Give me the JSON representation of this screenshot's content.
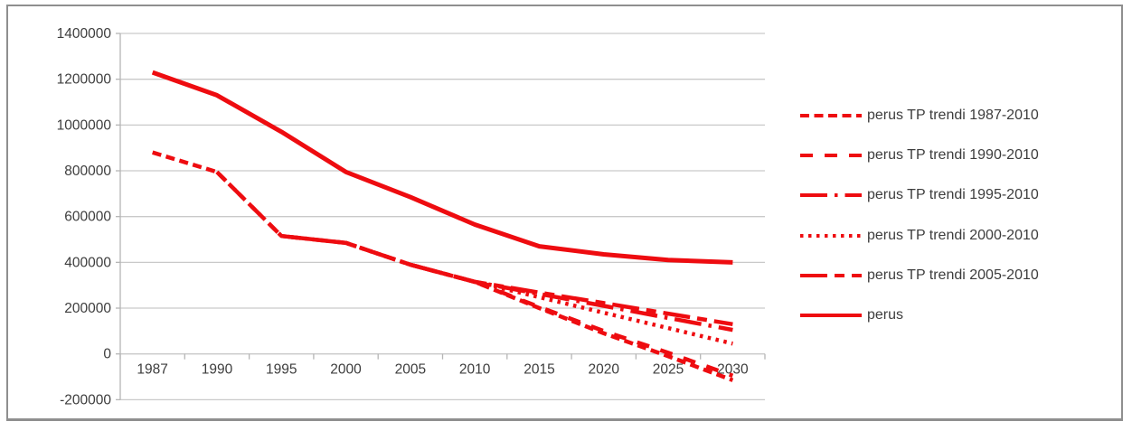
{
  "colors": {
    "line": "#ee0c10",
    "gridline": "#c9c9c9",
    "axis": "#b5b5b5",
    "text": "#3d3d3d",
    "frame": "#8f8f8f"
  },
  "chart_data": {
    "type": "line",
    "title": "",
    "xlabel": "",
    "ylabel": "",
    "grid": "horizontal",
    "legend_position": "right",
    "categories": [
      "1987",
      "1990",
      "1995",
      "2000",
      "2005",
      "2010",
      "2015",
      "2020",
      "2025",
      "2030"
    ],
    "y_axis": {
      "min": -200000,
      "max": 1400000,
      "step": 200000,
      "tick_labels": [
        "1400000",
        "1200000",
        "1000000",
        "800000",
        "600000",
        "400000",
        "200000",
        "0",
        "-200000"
      ]
    },
    "series": [
      {
        "name": "perus TP trendi 1987-2010",
        "dash": "10 5.5",
        "width": 4.5,
        "values": [
          880000,
          795000,
          515000,
          485000,
          390000,
          315000,
          200000,
          90000,
          -10000,
          -115000
        ]
      },
      {
        "name": "perus TP trendi 1990-2010",
        "dash": "14 13",
        "width": 4.5,
        "values": [
          null,
          795000,
          515000,
          485000,
          390000,
          315000,
          205000,
          100000,
          5000,
          -95000
        ]
      },
      {
        "name": "perus TP trendi 1995-2010",
        "dash": "30 8 3.5 8",
        "width": 4.5,
        "values": [
          null,
          null,
          515000,
          485000,
          390000,
          315000,
          262000,
          210000,
          157000,
          105000
        ]
      },
      {
        "name": "perus TP trendi 2000-2010",
        "dash": "3.5 5.5",
        "width": 4.5,
        "values": [
          null,
          null,
          null,
          485000,
          390000,
          315000,
          248000,
          180000,
          113000,
          45000
        ]
      },
      {
        "name": "perus TP trendi 2005-2010",
        "dash": "30 8 11 8",
        "width": 4.5,
        "values": [
          null,
          null,
          null,
          null,
          390000,
          315000,
          268000,
          222000,
          176000,
          130000
        ]
      },
      {
        "name": "perus",
        "dash": "",
        "width": 5,
        "values": [
          1230000,
          1130000,
          970000,
          795000,
          685000,
          565000,
          470000,
          435000,
          410000,
          400000
        ]
      }
    ]
  }
}
